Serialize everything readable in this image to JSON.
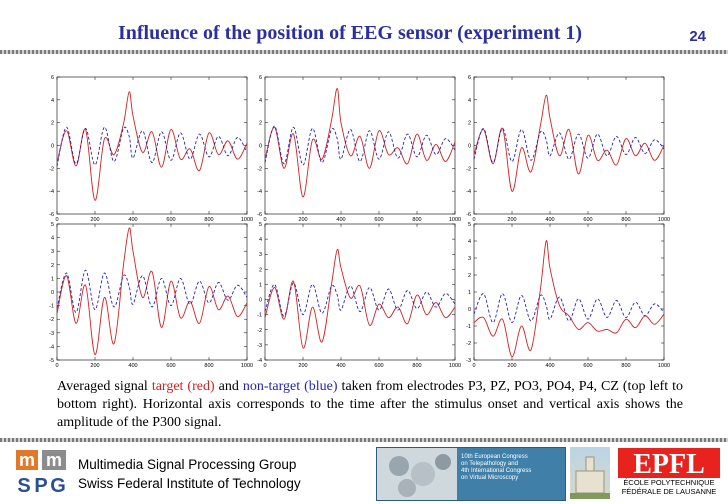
{
  "slide": {
    "title": "Influence of the position of EEG sensor (experiment 1)",
    "page_number": "24"
  },
  "caption": {
    "part1": "Averaged signal ",
    "target": "target (red)",
    "part2": " and ",
    "nontarget": "non-target (blue)",
    "part3": " taken from electrodes P3, PZ, PO3, PO4, P4, CZ (top left to bottom right). Horizontal axis corresponds to the time after the stimulus onset and vertical axis shows the amplitude of the P300 signal."
  },
  "footer": {
    "logo_letters": [
      "m",
      "m",
      "S",
      "P",
      "G"
    ],
    "group_line1": "Multimedia Signal Processing Group",
    "group_line2": "Swiss Federal Institute of Technology",
    "conference_lines": [
      "10th European Congress",
      "on Telepathology and",
      "4th International Congress",
      "on Virtual Microscopy"
    ],
    "epfl_logo": "EPFL",
    "epfl_line1": "ÉCOLE POLYTECHNIQUE",
    "epfl_line2": "FÉDÉRALE DE LAUSANNE"
  },
  "colors": {
    "title": "#2b2fa0",
    "target": "#d62020",
    "nontarget": "#2424b8"
  },
  "chart_data": [
    {
      "type": "line",
      "electrode": "P3",
      "xlim": [
        0,
        1000
      ],
      "ylim": [
        -6,
        6
      ],
      "xticks": [
        "0",
        "200",
        "400",
        "600",
        "800",
        "1000"
      ],
      "yticks": [
        "-6",
        "-4",
        "-2",
        "0",
        "2",
        "4",
        "6"
      ],
      "x": [
        0,
        50,
        100,
        150,
        200,
        250,
        300,
        350,
        380,
        400,
        450,
        500,
        550,
        600,
        650,
        700,
        750,
        800,
        850,
        900,
        950,
        1000
      ],
      "series": [
        {
          "name": "target",
          "color": "#d62020",
          "dash": false,
          "values": [
            -1.5,
            1.3,
            -1.8,
            1.4,
            -4.8,
            0.6,
            -0.8,
            1.9,
            4.7,
            2.6,
            -0.6,
            1.2,
            -1.9,
            1.4,
            -1.2,
            -0.3,
            -2.2,
            1.1,
            -0.8,
            0.4,
            -1.2,
            0.2
          ]
        },
        {
          "name": "non-target",
          "color": "#2424b8",
          "dash": true,
          "values": [
            -1.8,
            1.6,
            -1.6,
            1.5,
            -1.7,
            1.6,
            -1.4,
            1.5,
            0.8,
            -1.1,
            1.3,
            -1.5,
            1.2,
            -1.3,
            1.1,
            -1.2,
            1.0,
            -1.0,
            0.8,
            -0.9,
            0.7,
            -0.6
          ]
        }
      ]
    },
    {
      "type": "line",
      "electrode": "PZ",
      "xlim": [
        0,
        1000
      ],
      "ylim": [
        -6,
        6
      ],
      "xticks": [
        "0",
        "200",
        "400",
        "600",
        "800",
        "1000"
      ],
      "yticks": [
        "-6",
        "-4",
        "-2",
        "0",
        "2",
        "4",
        "6"
      ],
      "x": [
        0,
        50,
        100,
        150,
        200,
        250,
        300,
        350,
        380,
        400,
        450,
        500,
        550,
        600,
        650,
        700,
        750,
        800,
        850,
        900,
        950,
        1000
      ],
      "series": [
        {
          "name": "target",
          "color": "#d62020",
          "dash": false,
          "values": [
            -1.2,
            1.6,
            -2.0,
            1.0,
            -4.5,
            0.5,
            -1.2,
            2.2,
            5.0,
            2.0,
            -0.9,
            0.8,
            -2.0,
            1.3,
            -0.8,
            -0.2,
            -1.6,
            1.0,
            -1.3,
            0.1,
            -1.4,
            0.3
          ]
        },
        {
          "name": "non-target",
          "color": "#2424b8",
          "dash": true,
          "values": [
            -1.5,
            1.7,
            -1.6,
            1.6,
            -1.7,
            1.5,
            -1.5,
            1.4,
            0.6,
            -1.2,
            1.4,
            -1.4,
            1.3,
            -1.2,
            1.2,
            -1.1,
            1.0,
            -1.0,
            0.9,
            -0.8,
            0.6,
            -0.4
          ]
        }
      ]
    },
    {
      "type": "line",
      "electrode": "PO3",
      "xlim": [
        0,
        1000
      ],
      "ylim": [
        -6,
        6
      ],
      "xticks": [
        "0",
        "200",
        "400",
        "600",
        "800",
        "1000"
      ],
      "yticks": [
        "-6",
        "-4",
        "-2",
        "0",
        "2",
        "4",
        "6"
      ],
      "x": [
        0,
        50,
        100,
        150,
        200,
        250,
        300,
        350,
        380,
        400,
        450,
        500,
        550,
        600,
        650,
        700,
        750,
        800,
        850,
        900,
        950,
        1000
      ],
      "series": [
        {
          "name": "target",
          "color": "#d62020",
          "dash": false,
          "values": [
            -0.8,
            1.4,
            -1.6,
            1.5,
            -4.0,
            -0.2,
            -2.3,
            1.8,
            4.4,
            2.4,
            -0.9,
            1.4,
            -2.5,
            0.9,
            -1.3,
            -0.4,
            -1.7,
            0.6,
            -0.9,
            0.2,
            -1.3,
            0.0
          ]
        },
        {
          "name": "non-target",
          "color": "#2424b8",
          "dash": true,
          "values": [
            -1.2,
            1.5,
            -1.5,
            1.5,
            -1.4,
            1.4,
            -1.3,
            1.2,
            0.5,
            -0.9,
            1.1,
            -1.2,
            1.0,
            -1.1,
            1.0,
            -0.9,
            0.8,
            -0.8,
            0.7,
            -0.7,
            0.5,
            -0.3
          ]
        }
      ]
    },
    {
      "type": "line",
      "electrode": "PO4",
      "xlim": [
        0,
        1000
      ],
      "ylim": [
        -5,
        5
      ],
      "xticks": [
        "0",
        "200",
        "400",
        "600",
        "800",
        "1000"
      ],
      "yticks": [
        "-5",
        "-4",
        "-3",
        "-2",
        "-1",
        "0",
        "1",
        "2",
        "3",
        "4",
        "5"
      ],
      "x": [
        0,
        50,
        100,
        150,
        200,
        250,
        300,
        350,
        380,
        400,
        450,
        500,
        550,
        600,
        650,
        700,
        750,
        800,
        850,
        900,
        950,
        1000
      ],
      "series": [
        {
          "name": "target",
          "color": "#d62020",
          "dash": false,
          "values": [
            -1.6,
            1.2,
            -2.3,
            0.5,
            -4.6,
            -0.4,
            -3.8,
            2.0,
            4.7,
            3.0,
            -0.4,
            1.5,
            -2.6,
            0.8,
            -1.9,
            -0.7,
            -2.3,
            0.4,
            -1.3,
            -0.3,
            -1.8,
            -0.8
          ]
        },
        {
          "name": "non-target",
          "color": "#2424b8",
          "dash": true,
          "values": [
            -1.2,
            1.4,
            -1.5,
            1.6,
            -1.3,
            1.4,
            -1.1,
            1.2,
            0.4,
            -0.9,
            1.2,
            -1.1,
            1.0,
            -1.0,
            1.0,
            -0.9,
            0.8,
            -0.8,
            0.7,
            -0.6,
            0.5,
            -0.4
          ]
        }
      ]
    },
    {
      "type": "line",
      "electrode": "P4",
      "xlim": [
        0,
        1000
      ],
      "ylim": [
        -4,
        5
      ],
      "xticks": [
        "0",
        "200",
        "400",
        "600",
        "800",
        "1000"
      ],
      "yticks": [
        "-4",
        "-3",
        "-2",
        "-1",
        "0",
        "1",
        "2",
        "3",
        "4",
        "5"
      ],
      "x": [
        0,
        50,
        100,
        150,
        200,
        250,
        300,
        350,
        380,
        400,
        450,
        500,
        550,
        600,
        650,
        700,
        750,
        800,
        850,
        900,
        950,
        1000
      ],
      "series": [
        {
          "name": "target",
          "color": "#d62020",
          "dash": false,
          "values": [
            -1.2,
            0.8,
            -1.3,
            1.2,
            -3.2,
            -0.5,
            -2.8,
            1.0,
            3.3,
            2.1,
            0.1,
            0.9,
            -1.7,
            -0.3,
            -1.2,
            -0.5,
            -1.6,
            0.3,
            -1.0,
            -0.2,
            -1.2,
            -0.5
          ]
        },
        {
          "name": "non-target",
          "color": "#2424b8",
          "dash": true,
          "values": [
            -0.8,
            1.0,
            -1.1,
            1.1,
            -1.0,
            1.0,
            -0.9,
            0.9,
            0.3,
            -0.7,
            0.9,
            -0.8,
            0.8,
            -0.7,
            0.7,
            -0.7,
            0.6,
            -0.6,
            0.5,
            -0.5,
            0.4,
            -0.3
          ]
        }
      ]
    },
    {
      "type": "line",
      "electrode": "CZ",
      "xlim": [
        0,
        1000
      ],
      "ylim": [
        -3,
        5
      ],
      "xticks": [
        "0",
        "200",
        "400",
        "600",
        "800",
        "1000"
      ],
      "yticks": [
        "-3",
        "-2",
        "-1",
        "0",
        "1",
        "2",
        "3",
        "4",
        "5"
      ],
      "x": [
        0,
        50,
        100,
        150,
        200,
        250,
        300,
        350,
        380,
        400,
        450,
        500,
        550,
        600,
        650,
        700,
        750,
        800,
        850,
        900,
        950,
        1000
      ],
      "series": [
        {
          "name": "target",
          "color": "#d62020",
          "dash": false,
          "values": [
            -0.8,
            -0.5,
            -1.6,
            -0.6,
            -2.8,
            -1.0,
            -2.4,
            1.2,
            4.0,
            2.4,
            0.2,
            -0.4,
            -1.2,
            -0.8,
            -1.3,
            -1.2,
            -1.4,
            -0.6,
            -1.1,
            -0.4,
            -0.9,
            -0.3
          ]
        },
        {
          "name": "non-target",
          "color": "#2424b8",
          "dash": true,
          "values": [
            -0.3,
            0.9,
            -0.8,
            0.9,
            -0.8,
            0.8,
            -0.7,
            0.8,
            0.2,
            -0.6,
            0.7,
            -0.7,
            0.6,
            -0.6,
            0.6,
            -0.5,
            0.5,
            -0.5,
            0.4,
            -0.4,
            0.3,
            -0.2
          ]
        }
      ]
    }
  ]
}
